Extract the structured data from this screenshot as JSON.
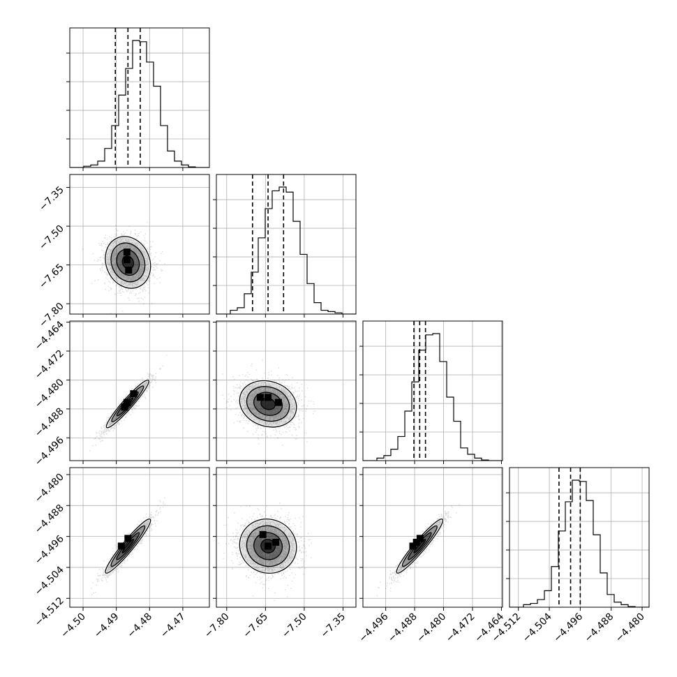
{
  "chart_data": {
    "type": "corner",
    "title": "",
    "parameters": [
      {
        "label": "",
        "range": [
          -4.504,
          -4.462
        ],
        "ticks": [
          -4.5,
          -4.49,
          -4.48,
          -4.47
        ],
        "tick_labels": [
          "−4.50",
          "−4.49",
          "−4.48",
          "−4.47"
        ]
      },
      {
        "label": "",
        "range": [
          -7.84,
          -7.3
        ],
        "ticks": [
          -7.8,
          -7.65,
          -7.5,
          -7.35
        ],
        "tick_labels": [
          "−7.80",
          "−7.65",
          "−7.50",
          "−7.35"
        ]
      },
      {
        "label": "",
        "range": [
          -4.5023,
          -4.4637
        ],
        "ticks": [
          -4.496,
          -4.488,
          -4.48,
          -4.472,
          -4.464
        ],
        "tick_labels": [
          "−4.496",
          "−4.488",
          "−4.480",
          "−4.472",
          "−4.464"
        ]
      },
      {
        "label": "",
        "range": [
          -4.5143,
          -4.4782
        ],
        "ticks": [
          -4.512,
          -4.504,
          -4.496,
          -4.488,
          -4.48
        ],
        "tick_labels": [
          "−4.512",
          "−4.504",
          "−4.496",
          "−4.488",
          "−4.480"
        ]
      }
    ],
    "marginals": [
      {
        "quantiles": [
          -4.4903,
          -4.4865,
          -4.4828
        ],
        "counts": [
          0.01,
          0.02,
          0.05,
          0.15,
          0.33,
          0.57,
          0.78,
          1.0,
          0.99,
          0.83,
          0.64,
          0.33,
          0.13,
          0.05,
          0.02,
          0.005
        ]
      },
      {
        "quantiles": [
          -7.7,
          -7.64,
          -7.58
        ],
        "counts": [
          0.03,
          0.05,
          0.16,
          0.33,
          0.6,
          0.83,
          0.97,
          1.0,
          0.96,
          0.73,
          0.47,
          0.24,
          0.09,
          0.03,
          0.02,
          0.01
        ]
      },
      {
        "quantiles": [
          -4.4882,
          -4.4866,
          -4.485
        ],
        "counts": [
          0.02,
          0.04,
          0.09,
          0.19,
          0.39,
          0.62,
          0.87,
          0.99,
          1.0,
          0.78,
          0.5,
          0.31,
          0.1,
          0.05,
          0.02,
          0.005
        ]
      },
      {
        "quantiles": [
          -4.5015,
          -4.4985,
          -4.496
        ],
        "counts": [
          0.02,
          0.03,
          0.06,
          0.13,
          0.32,
          0.6,
          0.83,
          1.0,
          0.99,
          0.84,
          0.57,
          0.27,
          0.1,
          0.04,
          0.02,
          0.005
        ]
      }
    ],
    "pairs": [
      {
        "row": 1,
        "col": 0,
        "center": [
          -4.4865,
          -7.64
        ],
        "sigma": [
          0.0034,
          0.05
        ],
        "rho": -0.15,
        "peaks": [
          [
            -4.4868,
            -7.63
          ],
          [
            -4.4863,
            -7.67
          ],
          [
            -4.4868,
            -7.6
          ]
        ]
      },
      {
        "row": 2,
        "col": 0,
        "center": [
          -4.4866,
          -4.4866
        ],
        "sigma": [
          0.0032,
          0.0033
        ],
        "rho": 0.95,
        "peaks": [
          [
            -4.4868,
            -4.4862
          ],
          [
            -4.4848,
            -4.4838
          ],
          [
            -4.4875,
            -4.4875
          ]
        ]
      },
      {
        "row": 2,
        "col": 1,
        "center": [
          -7.64,
          -4.4866
        ],
        "sigma": [
          0.055,
          0.0032
        ],
        "rho": -0.15,
        "peaks": [
          [
            -7.64,
            -4.4848
          ],
          [
            -7.6,
            -4.4862
          ],
          [
            -7.67,
            -4.4848
          ]
        ]
      },
      {
        "row": 3,
        "col": 0,
        "center": [
          -4.4865,
          -4.4985
        ],
        "sigma": [
          0.0034,
          0.0035
        ],
        "rho": 0.95,
        "peaks": [
          [
            -4.4885,
            -4.4985
          ],
          [
            -4.4865,
            -4.4965
          ]
        ]
      },
      {
        "row": 3,
        "col": 1,
        "center": [
          -7.64,
          -4.4985
        ],
        "sigma": [
          0.055,
          0.0035
        ],
        "rho": -0.05,
        "peaks": [
          [
            -7.64,
            -4.4985
          ],
          [
            -7.61,
            -4.4975
          ],
          [
            -7.66,
            -4.4955
          ]
        ]
      },
      {
        "row": 3,
        "col": 2,
        "center": [
          -4.4866,
          -4.4985
        ],
        "sigma": [
          0.0032,
          0.0035
        ],
        "rho": 0.95,
        "peaks": [
          [
            -4.4885,
            -4.4985
          ],
          [
            -4.4875,
            -4.4975
          ],
          [
            -4.4865,
            -4.4965
          ]
        ]
      }
    ],
    "grid": true,
    "colors": {
      "contour": "#000000",
      "density": "#000000",
      "gridline": "#b0b0b0"
    }
  }
}
